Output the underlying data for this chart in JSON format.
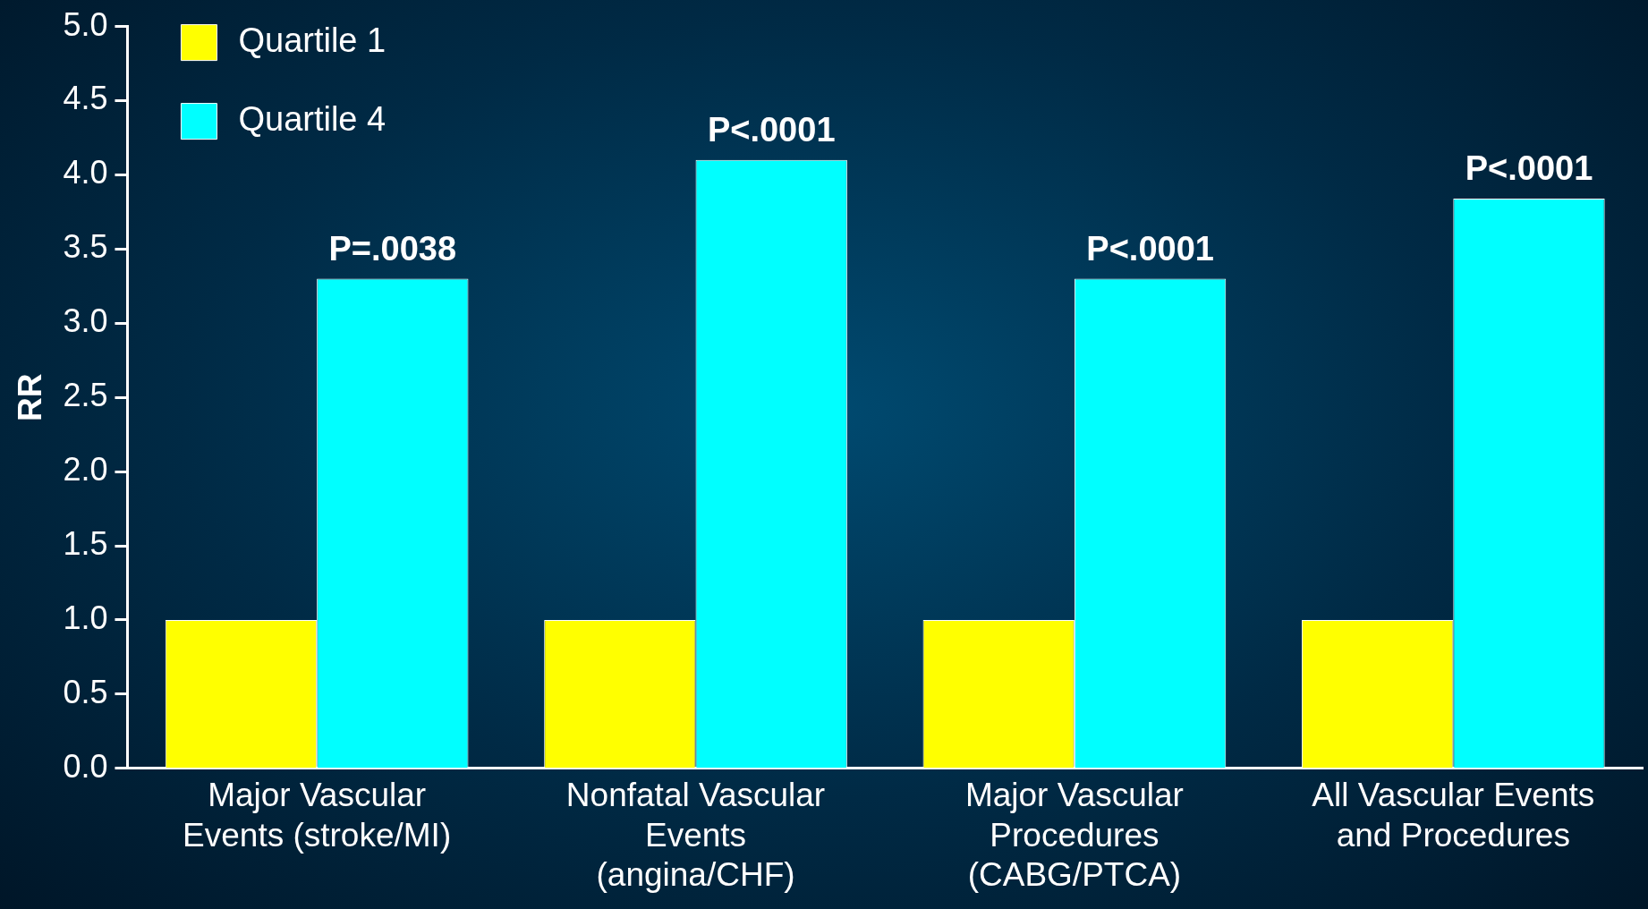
{
  "chart_data": {
    "type": "bar",
    "ylabel": "RR",
    "categories": [
      "Major Vascular\nEvents (stroke/MI)",
      "Nonfatal Vascular\nEvents\n(angina/CHF)",
      "Major Vascular\nProcedures\n(CABG/PTCA)",
      "All Vascular Events\nand Procedures"
    ],
    "series": [
      {
        "name": "Quartile 1",
        "color": "#ffff00",
        "values": [
          1.0,
          1.0,
          1.0,
          1.0
        ]
      },
      {
        "name": "Quartile 4",
        "color": "#00ffff",
        "values": [
          3.3,
          4.1,
          3.3,
          3.84
        ]
      }
    ],
    "ylim": [
      0,
      5
    ],
    "yticks": [
      {
        "value": 0,
        "label": "0.0"
      },
      {
        "value": 0.5,
        "label": "0.5"
      },
      {
        "value": 1,
        "label": "1.0"
      },
      {
        "value": 1.5,
        "label": "1.5"
      },
      {
        "value": 2,
        "label": "2.0"
      },
      {
        "value": 2.5,
        "label": "2.5"
      },
      {
        "value": 3,
        "label": "3.0"
      },
      {
        "value": 3.5,
        "label": "3.5"
      },
      {
        "value": 4,
        "label": "4.0"
      },
      {
        "value": 4.5,
        "label": "4.5"
      },
      {
        "value": 5,
        "label": "5.0"
      }
    ],
    "annotations": [
      {
        "text": "P=.0038",
        "x": "Major Vascular\nEvents (stroke/MI)",
        "y": 3.3
      },
      {
        "text": "P<.0001",
        "x": "Nonfatal Vascular\nEvents\n(angina/CHF)",
        "y": 4.1
      },
      {
        "text": "P<.0001",
        "x": "Major Vascular\nProcedures\n(CABG/PTCA)",
        "y": 3.3
      },
      {
        "text": "P<.0001",
        "x": "All Vascular Events\nand Procedures",
        "y": 3.84
      }
    ],
    "grid": false,
    "legend": "top left"
  }
}
